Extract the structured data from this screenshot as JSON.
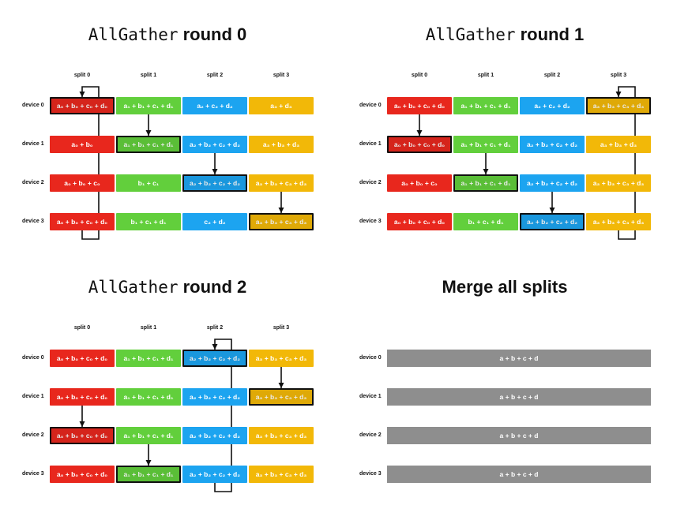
{
  "colors": {
    "split0": "#e8271d",
    "split1": "#62cf3c",
    "split2": "#1ca4f0",
    "split3": "#f2b808",
    "merged": "#8e8e8e",
    "highlight_border": "#111111"
  },
  "split_labels": [
    "split 0",
    "split 1",
    "split 2",
    "split 3"
  ],
  "device_labels": [
    "device 0",
    "device 1",
    "device 2",
    "device 3"
  ],
  "panels": [
    {
      "title_mono": "AllGather",
      "title_rest": " round 0",
      "cells": [
        [
          "a₀ + b₀ + c₀ + d₀",
          "a₁ + b₁ + c₁ + d₁",
          "a₂ + c₂ + d₂",
          "a₃ + d₃"
        ],
        [
          "a₀ + b₀",
          "a₁ + b₁ + c₁ + d₁",
          "a₂ + b₂ + c₂ + d₂",
          "a₃ + b₃ + d₃"
        ],
        [
          "a₀ + b₀ + c₀",
          "b₁ + c₁",
          "a₂ + b₂ + c₂ + d₂",
          "a₃ + b₃ + c₃ + d₃"
        ],
        [
          "a₀ + b₀ + c₀ + d₀",
          "b₁ + c₁ + d₁",
          "c₂ + d₂",
          "a₃ + b₃ + c₃ + d₃"
        ]
      ],
      "highlighted": [
        [
          0,
          0
        ],
        [
          1,
          1
        ],
        [
          2,
          2
        ],
        [
          3,
          3
        ]
      ],
      "arrows": [
        {
          "split": 1,
          "from": 0,
          "to": 1
        },
        {
          "split": 2,
          "from": 1,
          "to": 2
        },
        {
          "split": 3,
          "from": 2,
          "to": 3
        }
      ],
      "wrap_arrow": {
        "split": 0,
        "from": 3,
        "to": 0
      }
    },
    {
      "title_mono": "AllGather",
      "title_rest": " round 1",
      "cells": [
        [
          "a₀ + b₀ + c₀ + d₀",
          "a₁ + b₁ + c₁ + d₁",
          "a₂ + c₂ + d₂",
          "a₃ + b₃ + c₃ + d₃"
        ],
        [
          "a₀ + b₀ + c₀ + d₀",
          "a₁ + b₁ + c₁ + d₁",
          "a₂ + b₂ + c₂ + d₂",
          "a₃ + b₃ + d₃"
        ],
        [
          "a₀ + b₀ + c₀",
          "a₁ + b₁ + c₁ + d₁",
          "a₂ + b₂ + c₂ + d₂",
          "a₃ + b₃ + c₃ + d₃"
        ],
        [
          "a₀ + b₀ + c₀ + d₀",
          "b₁ + c₁ + d₁",
          "a₂ + b₂ + c₂ + d₂",
          "a₃ + b₃ + c₃ + d₃"
        ]
      ],
      "highlighted": [
        [
          0,
          3
        ],
        [
          1,
          0
        ],
        [
          2,
          1
        ],
        [
          3,
          2
        ]
      ],
      "arrows": [
        {
          "split": 0,
          "from": 0,
          "to": 1
        },
        {
          "split": 1,
          "from": 1,
          "to": 2
        },
        {
          "split": 2,
          "from": 2,
          "to": 3
        }
      ],
      "wrap_arrow": {
        "split": 3,
        "from": 3,
        "to": 0
      }
    },
    {
      "title_mono": "AllGather",
      "title_rest": " round 2",
      "cells": [
        [
          "a₀ + b₀ + c₀ + d₀",
          "a₁ + b₁ + c₁ + d₁",
          "a₂ + b₂ + c₂ + d₂",
          "a₃ + b₃ + c₃ + d₃"
        ],
        [
          "a₀ + b₀ + c₀ + d₀",
          "a₁ + b₁ + c₁ + d₁",
          "a₂ + b₂ + c₂ + d₂",
          "a₃ + b₃ + c₃ + d₃"
        ],
        [
          "a₀ + b₀ + c₀ + d₀",
          "a₁ + b₁ + c₁ + d₁",
          "a₂ + b₂ + c₂ + d₂",
          "a₃ + b₃ + c₃ + d₃"
        ],
        [
          "a₀ + b₀ + c₀ + d₀",
          "a₁ + b₁ + c₁ + d₁",
          "a₂ + b₂ + c₂ + d₂",
          "a₃ + b₃ + c₃ + d₃"
        ]
      ],
      "highlighted": [
        [
          0,
          2
        ],
        [
          1,
          3
        ],
        [
          2,
          0
        ],
        [
          3,
          1
        ]
      ],
      "arrows": [
        {
          "split": 0,
          "from": 1,
          "to": 2
        },
        {
          "split": 1,
          "from": 2,
          "to": 3
        },
        {
          "split": 3,
          "from": 0,
          "to": 1
        }
      ],
      "wrap_arrow": {
        "split": 2,
        "from": 3,
        "to": 0
      }
    }
  ],
  "merge_panel": {
    "title": "Merge all splits",
    "rows": [
      "a + b + c + d",
      "a + b + c + d",
      "a + b + c + d",
      "a + b + c + d"
    ]
  }
}
